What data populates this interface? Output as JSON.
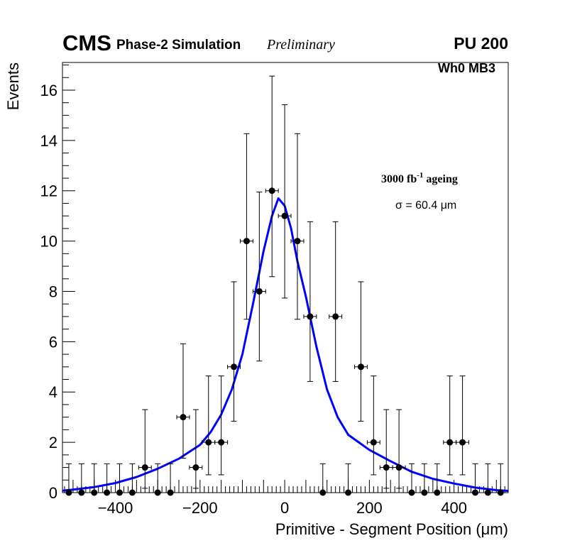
{
  "chart_data": {
    "type": "scatter",
    "title": "",
    "xlabel": "Primitive - Segment Position (μm)",
    "ylabel": "Events",
    "xlim": [
      -525,
      528
    ],
    "ylim": [
      0,
      17.1
    ],
    "xticks": [
      -400,
      -200,
      0,
      200,
      400
    ],
    "xtick_labels": [
      "−400",
      "−200",
      "0",
      "200",
      "400"
    ],
    "yticks": [
      0,
      2,
      4,
      6,
      8,
      10,
      12,
      14,
      16
    ],
    "ytick_labels": [
      "0",
      "2",
      "4",
      "6",
      "8",
      "10",
      "12",
      "14",
      "16"
    ],
    "bin_width": 30,
    "series": [
      {
        "name": "Events",
        "color": "#000000",
        "x": [
          -510,
          -480,
          -450,
          -420,
          -390,
          -360,
          -330,
          -300,
          -270,
          -240,
          -210,
          -180,
          -150,
          -120,
          -90,
          -60,
          -30,
          0,
          30,
          60,
          90,
          120,
          150,
          180,
          210,
          240,
          270,
          300,
          330,
          360,
          390,
          420,
          450,
          480,
          510
        ],
        "y": [
          0,
          0,
          0,
          0,
          0,
          0,
          1,
          0,
          0,
          3,
          1,
          2,
          2,
          5,
          10,
          8,
          12,
          11,
          10,
          7,
          0,
          7,
          0,
          5,
          2,
          1,
          1,
          0,
          0,
          0,
          2,
          2,
          0,
          0,
          0
        ]
      },
      {
        "name": "Fit",
        "type": "line",
        "color": "#0000ff",
        "x": [
          -525,
          -500,
          -450,
          -400,
          -350,
          -300,
          -250,
          -200,
          -175,
          -150,
          -125,
          -100,
          -75,
          -50,
          -30,
          -15,
          0,
          15,
          30,
          50,
          75,
          100,
          125,
          150,
          200,
          250,
          300,
          350,
          400,
          450,
          500,
          528
        ],
        "y": [
          0.08,
          0.12,
          0.22,
          0.38,
          0.62,
          0.95,
          1.35,
          1.9,
          2.4,
          3.1,
          4.1,
          5.5,
          7.5,
          9.6,
          11.0,
          11.7,
          11.4,
          10.5,
          9.2,
          7.8,
          5.8,
          4.1,
          3.0,
          2.3,
          1.7,
          1.25,
          0.83,
          0.55,
          0.36,
          0.2,
          0.1,
          0.07
        ]
      }
    ],
    "annotations": {
      "cms": "CMS",
      "simulation": "Phase-2 Simulation",
      "preliminary": "Preliminary",
      "pileup": "PU 200",
      "region": "Wh0 MB3",
      "ageing_main": "3000 fb",
      "ageing_exp": "-1",
      "ageing_suffix": " ageing",
      "sigma": "σ = 60.4 μm"
    }
  }
}
